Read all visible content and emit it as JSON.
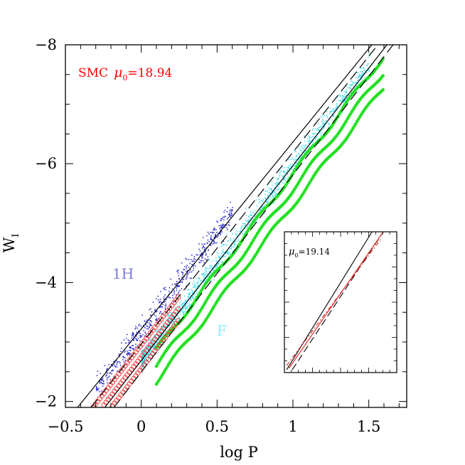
{
  "chart_data": {
    "type": "scatter",
    "xlabel": "log P",
    "ylabel": "W",
    "ylabel_sub": "I",
    "xlim": [
      -0.5,
      1.75
    ],
    "ylim": [
      -1.9,
      -8.0
    ],
    "y_inverted": true,
    "x_ticks": [
      -0.5,
      0,
      0.5,
      1,
      1.5
    ],
    "x_tick_labels": [
      "−0.5",
      "0",
      "0.5",
      "1",
      "1.5"
    ],
    "y_ticks": [
      -2,
      -4,
      -6,
      -8
    ],
    "y_tick_labels": [
      "−2",
      "−4",
      "−6",
      "−8"
    ],
    "annotations": {
      "main_label": "SMC",
      "mu_symbol": "μ",
      "mu_sub": "0",
      "mu_value": "=18.94",
      "label_1h": "1H",
      "label_f": "F"
    },
    "colors": {
      "annotation_red": "#ff0000",
      "label_1h": "#7a7ae0",
      "label_f": "#8ef0f8",
      "F_observed": "#33ddee",
      "1H_observed": "#2222cc",
      "model_F": "#22e022",
      "model_1H": "#ee3333"
    },
    "series": [
      {
        "marker": "cyan-dot",
        "population": "F",
        "x_range": [
          0.0,
          1.5
        ],
        "slope": -3.3,
        "intercept": -2.7,
        "scatter": 0.13
      },
      {
        "marker": "blue-dot",
        "population": "1H",
        "x_range": [
          -0.3,
          0.6
        ],
        "slope": -3.3,
        "intercept": -3.2,
        "scatter": 0.15
      },
      {
        "marker": "green-filled-circle",
        "population": "F",
        "x_range": [
          0.1,
          1.6
        ],
        "slope": -3.3,
        "intercept": -2.75,
        "sequences": 3
      },
      {
        "marker": "red-open-circle",
        "population": "1H",
        "x_range": [
          -0.4,
          0.25
        ],
        "slope": -3.3,
        "intercept": -3.25,
        "sequences": 3
      }
    ],
    "lines": [
      {
        "style": "solid",
        "x": [
          -0.42,
          1.52
        ],
        "y": [
          -1.9,
          -8.0
        ]
      },
      {
        "style": "dashed",
        "x": [
          -0.33,
          1.56
        ],
        "y": [
          -1.9,
          -8.0
        ]
      },
      {
        "style": "solid",
        "x": [
          -0.24,
          1.62
        ],
        "y": [
          -1.9,
          -8.0
        ]
      },
      {
        "style": "dashed",
        "x": [
          -0.18,
          1.66
        ],
        "y": [
          -1.9,
          -8.0
        ]
      }
    ],
    "inset": {
      "label_symbol": "μ",
      "label_sub": "0",
      "label_value": "=19.14",
      "lines": [
        {
          "style": "solid",
          "color": "#000000",
          "x": [
            0.02,
            0.78
          ],
          "y": [
            0.98,
            0.0
          ]
        },
        {
          "style": "dashed",
          "color": "#000000",
          "x": [
            0.07,
            0.88
          ],
          "y": [
            0.98,
            0.0
          ]
        },
        {
          "style": "solid",
          "color": "#dd2222",
          "x": [
            0.04,
            0.88
          ],
          "y": [
            0.97,
            0.0
          ]
        },
        {
          "style": "dashed",
          "color": "#dd2222",
          "x": [
            0.02,
            0.86
          ],
          "y": [
            0.95,
            0.05
          ]
        }
      ]
    }
  }
}
